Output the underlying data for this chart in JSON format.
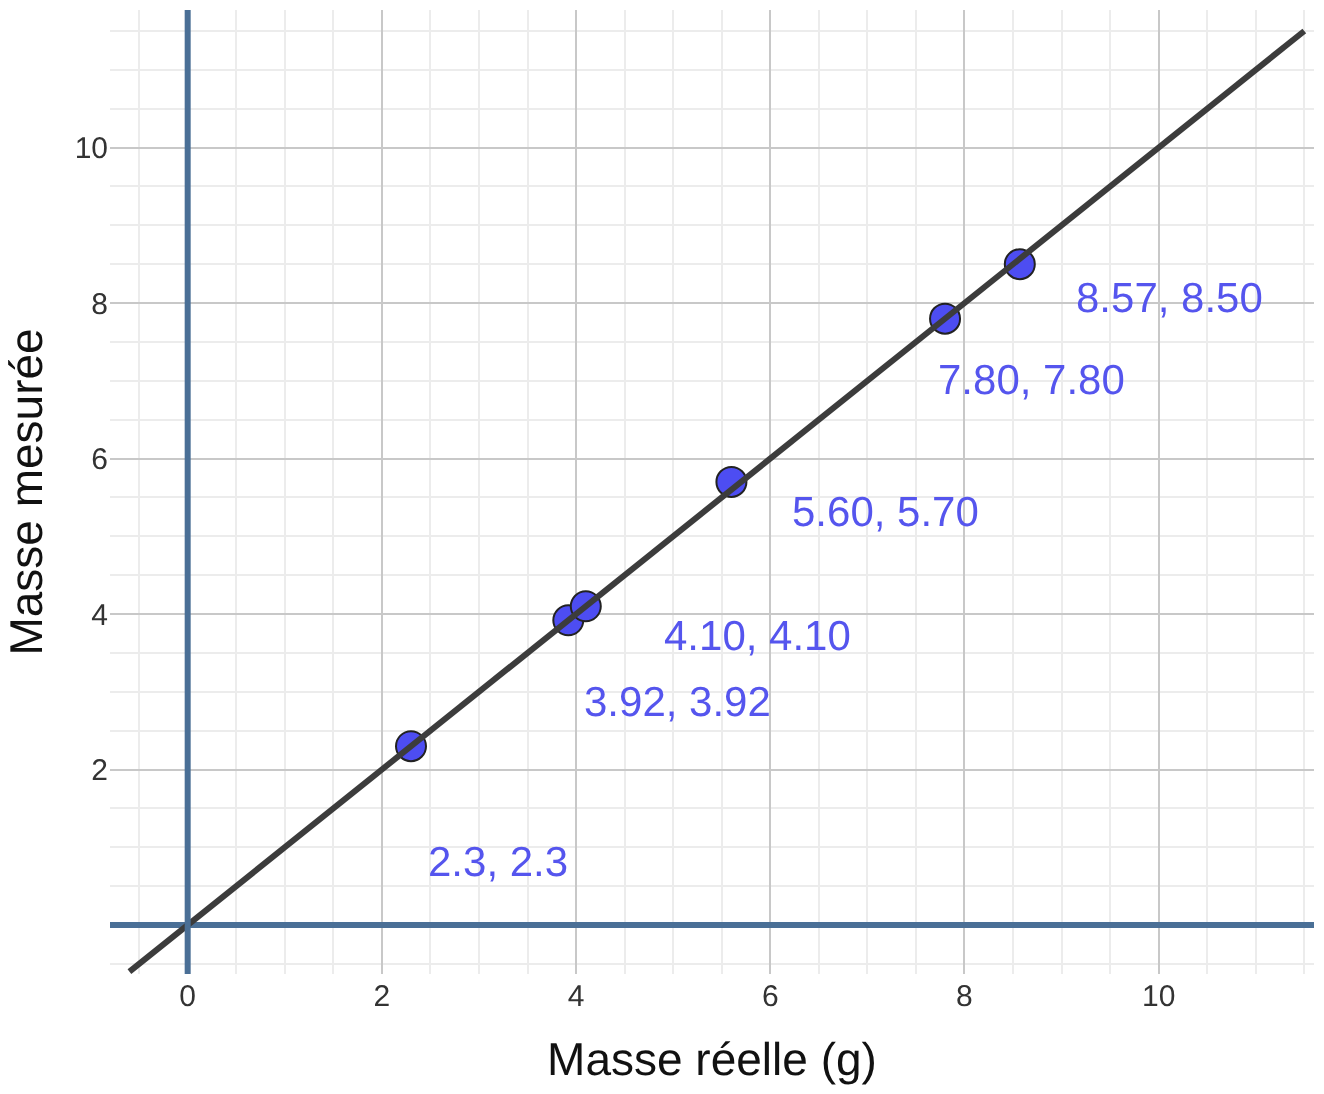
{
  "chart_data": {
    "type": "scatter",
    "xlabel": "Masse réelle (g)",
    "ylabel": "Masse mesurée",
    "x": [
      2.3,
      3.92,
      4.1,
      5.6,
      7.8,
      8.57
    ],
    "series": [
      {
        "color": "#4d4df2",
        "values": [
          2.3,
          3.92,
          4.1,
          5.7,
          7.8,
          8.5
        ],
        "marker": "circle"
      },
      {
        "type": "line",
        "color": "#3c3c3c",
        "x": [
          -0.6,
          11.5
        ],
        "values": [
          -0.6,
          11.5
        ],
        "marker": "none"
      }
    ],
    "annotations": [
      {
        "text": "2.3, 2.3",
        "x": 2.3,
        "y": 2.3
      },
      {
        "text": "3.92, 3.92",
        "x": 3.92,
        "y": 3.92
      },
      {
        "text": "4.10, 4.10",
        "x": 4.1,
        "y": 4.1
      },
      {
        "text": "5.60, 5.70",
        "x": 5.6,
        "y": 5.7
      },
      {
        "text": "7.80, 7.80",
        "x": 7.8,
        "y": 7.8
      },
      {
        "text": "8.57, 8.50",
        "x": 8.57,
        "y": 8.5
      }
    ],
    "xlim": [
      -0.8,
      11.6
    ],
    "ylim": [
      -0.63,
      11.77
    ],
    "xticks": [
      0,
      2,
      4,
      6,
      8,
      10
    ],
    "yticks": [
      {
        "value": 0,
        "label": null
      },
      2,
      4,
      6,
      8,
      10
    ],
    "ref_lines": [
      {
        "axis": "x",
        "value": 0,
        "color": "#4a6f96"
      }
    ],
    "grid": true
  }
}
